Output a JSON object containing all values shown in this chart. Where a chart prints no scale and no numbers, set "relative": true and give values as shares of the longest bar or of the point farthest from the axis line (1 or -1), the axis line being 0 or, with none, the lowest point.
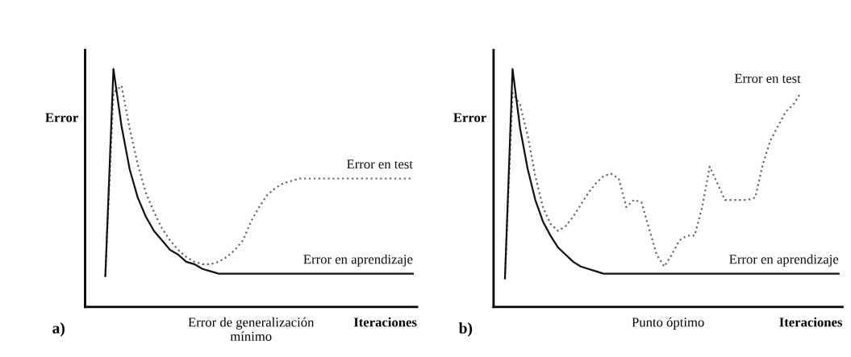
{
  "chart_data": [
    {
      "type": "line",
      "relative": true,
      "ylabel": "Error",
      "xlabel": "Iteraciones",
      "legend": false,
      "grid": false,
      "annotations": [
        "a)",
        "Error de generalización\nmínimo"
      ],
      "categories": [
        null,
        null,
        null,
        null,
        null,
        null,
        null,
        null,
        null,
        null,
        null,
        null,
        null,
        null,
        null,
        null,
        null,
        null,
        null,
        null,
        null,
        null,
        null,
        null,
        null,
        null,
        null,
        null,
        null,
        null,
        null,
        null,
        null,
        null,
        null,
        null,
        null,
        null,
        null,
        null,
        null
      ],
      "series": [
        {
          "name": "Error en test",
          "color": "#666666",
          "line_style": "dotted",
          "values": [
            null,
            null,
            0.13,
            0.9,
            0.93,
            0.75,
            0.6,
            0.48,
            0.4,
            0.33,
            0.28,
            0.24,
            0.21,
            0.19,
            0.18,
            0.18,
            0.19,
            0.21,
            0.24,
            0.28,
            0.36,
            0.42,
            0.47,
            0.5,
            0.52,
            0.53,
            0.54,
            0.54,
            0.54,
            0.54,
            0.54,
            0.54,
            0.54,
            0.54,
            0.54,
            0.54,
            0.54,
            0.54,
            0.54,
            0.54,
            0.54
          ]
        },
        {
          "name": "Error en aprendizaje",
          "color": "#111111",
          "line_style": "solid",
          "values": [
            null,
            null,
            0.13,
            1.0,
            0.76,
            0.58,
            0.46,
            0.38,
            0.32,
            0.28,
            0.24,
            0.22,
            0.19,
            0.18,
            0.16,
            0.15,
            0.14,
            0.14,
            0.14,
            0.14,
            0.14,
            0.14,
            0.14,
            0.14,
            0.14,
            0.14,
            0.14,
            0.14,
            0.14,
            0.14,
            0.14,
            0.14,
            0.14,
            0.14,
            0.14,
            0.14,
            0.14,
            0.14,
            0.14,
            0.14,
            0.14
          ]
        }
      ]
    },
    {
      "type": "line",
      "relative": true,
      "ylabel": "Error",
      "xlabel": "Iteraciones",
      "legend": false,
      "grid": false,
      "annotations": [
        "b)",
        "Punto óptimo"
      ],
      "categories": [
        null,
        null,
        null,
        null,
        null,
        null,
        null,
        null,
        null,
        null,
        null,
        null,
        null,
        null,
        null,
        null,
        null,
        null,
        null,
        null,
        null,
        null,
        null,
        null,
        null,
        null,
        null,
        null,
        null,
        null,
        null,
        null,
        null,
        null,
        null,
        null,
        null,
        null,
        null,
        null,
        null,
        null,
        null,
        null,
        null,
        null
      ],
      "series": [
        {
          "name": "Error en test",
          "color": "#666666",
          "line_style": "dotted",
          "values": [
            null,
            0.12,
            0.9,
            0.85,
            0.72,
            0.55,
            0.42,
            0.35,
            0.32,
            0.34,
            0.38,
            0.43,
            0.48,
            0.52,
            0.55,
            0.56,
            0.54,
            0.42,
            0.45,
            0.44,
            0.33,
            0.22,
            0.17,
            0.22,
            0.28,
            0.3,
            0.3,
            0.42,
            0.59,
            0.52,
            0.45,
            0.45,
            0.45,
            0.45,
            0.46,
            0.6,
            0.7,
            0.76,
            0.82,
            0.85,
            0.9,
            null,
            null,
            null,
            null,
            null
          ]
        },
        {
          "name": "Error en aprendizaje",
          "color": "#111111",
          "line_style": "solid",
          "values": [
            null,
            0.12,
            1.0,
            0.75,
            0.58,
            0.45,
            0.36,
            0.3,
            0.25,
            0.22,
            0.19,
            0.17,
            0.16,
            0.15,
            0.14,
            0.14,
            0.14,
            0.14,
            0.14,
            0.14,
            0.14,
            0.14,
            0.14,
            0.14,
            0.14,
            0.14,
            0.14,
            0.14,
            0.14,
            0.14,
            0.14,
            0.14,
            0.14,
            0.14,
            0.14,
            0.14,
            0.14,
            0.14,
            0.14,
            0.14,
            0.14,
            0.14,
            0.14,
            0.14,
            0.14,
            0.14
          ]
        }
      ]
    }
  ]
}
